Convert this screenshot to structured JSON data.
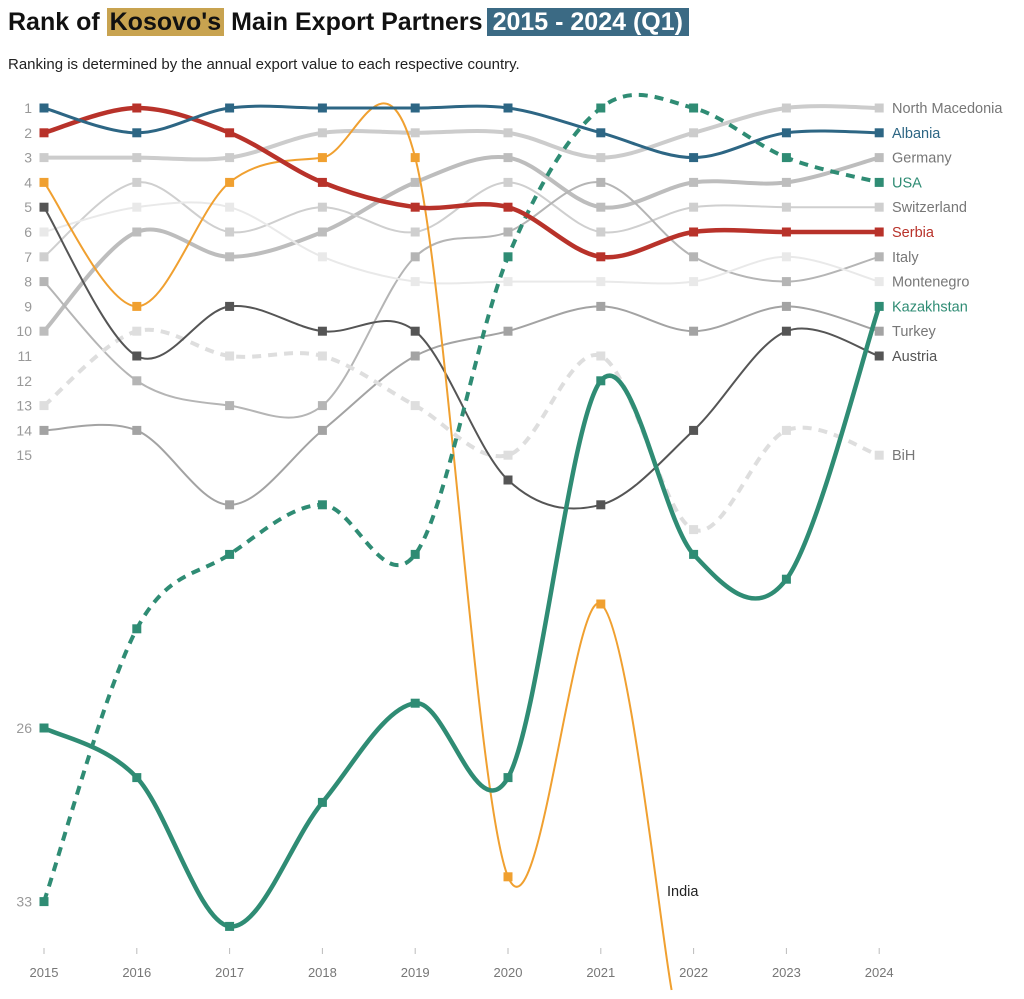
{
  "title": {
    "prefix": "Rank of ",
    "highlight": "Kosovo's",
    "middle": " Main Export Partners",
    "period": "2015 - 2024 (Q1)"
  },
  "subtitle": "Ranking is determined by the annual export value to each respective country.",
  "chart_data": {
    "type": "line",
    "subtype": "bump",
    "x": [
      2015,
      2016,
      2017,
      2018,
      2019,
      2020,
      2021,
      2022,
      2023,
      2024
    ],
    "y_tick_labels": [
      1,
      2,
      3,
      4,
      5,
      6,
      7,
      8,
      9,
      10,
      11,
      12,
      13,
      14,
      15,
      26,
      33
    ],
    "y_reversed": true,
    "grid": false,
    "series": [
      {
        "name": "North Macedonia",
        "values": [
          3,
          3,
          3,
          2,
          2,
          2,
          3,
          2,
          1,
          1
        ],
        "color": "#cccccc",
        "width": 4,
        "dash": false,
        "label_color": "#777777"
      },
      {
        "name": "Germany",
        "values": [
          10,
          6,
          7,
          6,
          4,
          3,
          5,
          4,
          4,
          3
        ],
        "color": "#bdbdbd",
        "width": 4,
        "dash": false,
        "label_color": "#777777"
      },
      {
        "name": "Switzerland",
        "values": [
          7,
          4,
          6,
          5,
          6,
          4,
          6,
          5,
          5,
          5
        ],
        "color": "#cfcfcf",
        "width": 2,
        "dash": false,
        "label_color": "#777777"
      },
      {
        "name": "Italy",
        "values": [
          8,
          12,
          13,
          13,
          7,
          6,
          4,
          7,
          8,
          7
        ],
        "color": "#b5b5b5",
        "width": 2,
        "dash": false,
        "label_color": "#777777"
      },
      {
        "name": "Montenegro",
        "values": [
          6,
          5,
          5,
          7,
          8,
          8,
          8,
          8,
          7,
          8
        ],
        "color": "#e9e9e9",
        "width": 2,
        "dash": false,
        "label_color": "#777777"
      },
      {
        "name": "Turkey",
        "values": [
          14,
          14,
          17,
          14,
          11,
          10,
          9,
          10,
          9,
          10
        ],
        "color": "#a3a3a3",
        "width": 2,
        "dash": false,
        "label_color": "#777777"
      },
      {
        "name": "BiH",
        "values": [
          13,
          10,
          11,
          11,
          13,
          15,
          11,
          18,
          14,
          15
        ],
        "color": "#dedede",
        "width": 4,
        "dash": true,
        "label_color": "#777777"
      },
      {
        "name": "Austria",
        "values": [
          5,
          11,
          9,
          10,
          10,
          16,
          17,
          14,
          10,
          11
        ],
        "color": "#555555",
        "width": 2,
        "dash": false,
        "label_color": "#555555"
      },
      {
        "name": "India",
        "values": [
          4,
          9,
          4,
          3,
          3,
          32,
          21,
          null,
          null,
          null
        ],
        "color": "#f0a030",
        "width": 2,
        "dash": false,
        "label_color": "#222222"
      },
      {
        "name": "Kazakhstan",
        "values": [
          26,
          28,
          34,
          29,
          25,
          28,
          12,
          19,
          20,
          9
        ],
        "color": "#2f8c74",
        "width": 4.5,
        "dash": false,
        "label_color": "#2f8c74"
      },
      {
        "name": "USA",
        "values": [
          33,
          22,
          19,
          17,
          19,
          7,
          1,
          1,
          3,
          4
        ],
        "color": "#2f8c74",
        "width": 4,
        "dash": true,
        "label_color": "#2f8c74"
      },
      {
        "name": "Serbia",
        "values": [
          2,
          1,
          2,
          4,
          5,
          5,
          7,
          6,
          6,
          6
        ],
        "color": "#b8322a",
        "width": 4.5,
        "dash": false,
        "label_color": "#b8322a"
      },
      {
        "name": "Albania",
        "values": [
          1,
          2,
          1,
          1,
          1,
          1,
          2,
          3,
          2,
          2
        ],
        "color": "#2d6684",
        "width": 3,
        "dash": false,
        "label_color": "#2d6684"
      }
    ]
  }
}
